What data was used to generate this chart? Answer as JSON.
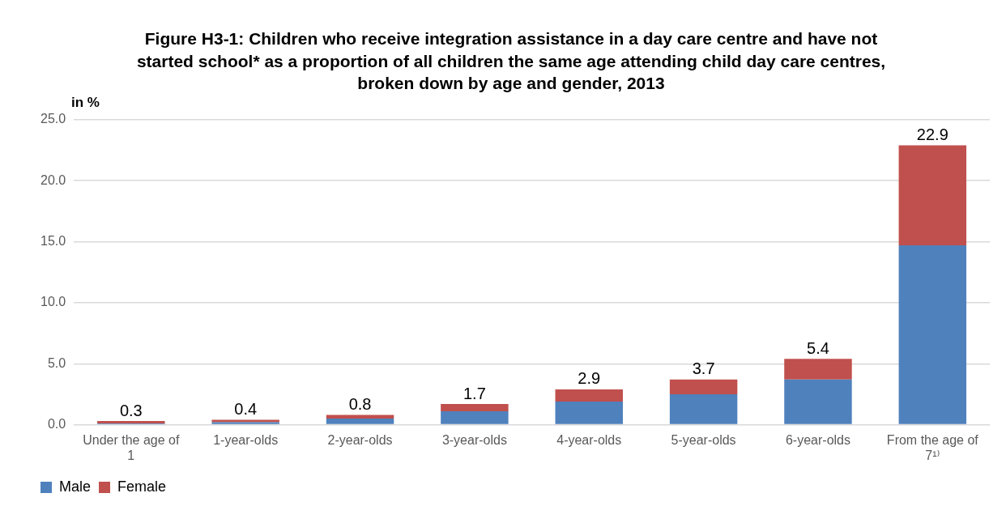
{
  "chart_data": {
    "type": "bar",
    "stacked": true,
    "title": "Figure H3-1: Children who receive integration assistance in a day care centre and have not started school* as a proportion of all children the same age attending child day care centres, broken down by age and gender, 2013",
    "ylabel": "in %",
    "categories": [
      "Under the age of 1",
      "1-year-olds",
      "2-year-olds",
      "3-year-olds",
      "4-year-olds",
      "5-year-olds",
      "6-year-olds",
      "From the age of 7¹⁾"
    ],
    "series": [
      {
        "name": "Male",
        "color": "#4f81bd",
        "values": [
          0.1,
          0.2,
          0.5,
          1.1,
          1.9,
          2.5,
          3.7,
          14.7
        ]
      },
      {
        "name": "Female",
        "color": "#c0504d",
        "values": [
          0.2,
          0.2,
          0.3,
          0.6,
          1.0,
          1.2,
          1.7,
          8.2
        ]
      }
    ],
    "totals": [
      "0.3",
      "0.4",
      "0.8",
      "1.7",
      "2.9",
      "3.7",
      "5.4",
      "22.9"
    ],
    "ylim": [
      0,
      25
    ],
    "yticks": [
      {
        "value": 0,
        "label": "0.0"
      },
      {
        "value": 5,
        "label": "5.0"
      },
      {
        "value": 10,
        "label": "10.0"
      },
      {
        "value": 15,
        "label": "15.0"
      },
      {
        "value": 20,
        "label": "20.0"
      },
      {
        "value": 25,
        "label": "25.0"
      }
    ],
    "grid": "y",
    "legend": "bottom left"
  }
}
